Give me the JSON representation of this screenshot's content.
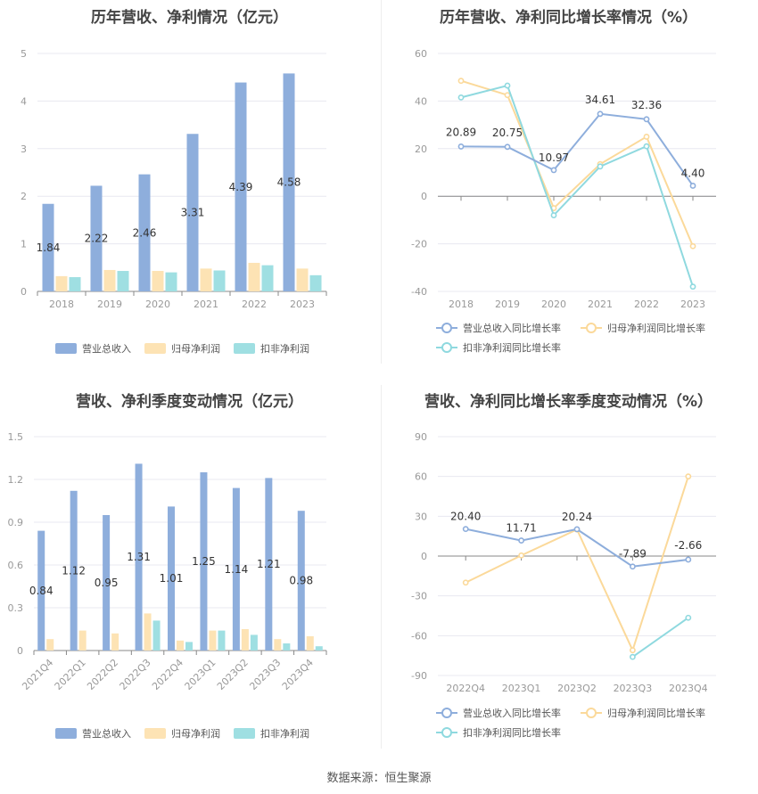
{
  "footer": {
    "source": "数据来源：恒生聚源"
  },
  "colors": {
    "revenue_bar": "#8eaedc",
    "profit_bar": "#fde3b4",
    "deducted_bar": "#9fdfe2",
    "revenue_line": "#8eaedc",
    "profit_line": "#fbd99a",
    "deducted_line": "#8fd9df",
    "axis_text": "#999999",
    "grid": "#e8e8f0"
  },
  "chart_data": [
    {
      "type": "bar",
      "title": "历年营收、净利情况（亿元）",
      "categories": [
        "2018",
        "2019",
        "2020",
        "2021",
        "2022",
        "2023"
      ],
      "ylim": [
        0,
        5
      ],
      "yticks": [
        "0",
        "1",
        "2",
        "3",
        "4",
        "5"
      ],
      "series": [
        {
          "name": "营业总收入",
          "values": [
            1.84,
            2.22,
            2.46,
            3.31,
            4.39,
            4.58
          ],
          "labels": [
            "1.84",
            "2.22",
            "2.46",
            "3.31",
            "4.39",
            "4.58"
          ]
        },
        {
          "name": "归母净利润",
          "values": [
            0.32,
            0.45,
            0.43,
            0.48,
            0.6,
            0.48
          ]
        },
        {
          "name": "扣非净利润",
          "values": [
            0.3,
            0.43,
            0.4,
            0.44,
            0.55,
            0.34
          ]
        }
      ],
      "legend": "bottom",
      "grid": true
    },
    {
      "type": "line",
      "title": "历年营收、净利同比增长率情况（%）",
      "categories": [
        "2018",
        "2019",
        "2020",
        "2021",
        "2022",
        "2023"
      ],
      "ylim": [
        -40,
        60
      ],
      "yticks": [
        "-40",
        "-20",
        "0",
        "20",
        "40",
        "60"
      ],
      "series": [
        {
          "name": "营业总收入同比增长率",
          "values": [
            20.89,
            20.75,
            10.97,
            34.61,
            32.36,
            4.4
          ],
          "labels": [
            "20.89",
            "20.75",
            "10.97",
            "34.61",
            "32.36",
            "4.40"
          ]
        },
        {
          "name": "归母净利润同比增长率",
          "values": [
            48.5,
            42.5,
            -5,
            13.5,
            25,
            -21
          ]
        },
        {
          "name": "扣非净利润同比增长率",
          "values": [
            41.5,
            46.5,
            -8,
            12.5,
            21,
            -38
          ]
        }
      ],
      "legend": "bottom",
      "grid": true
    },
    {
      "type": "bar",
      "title": "营收、净利季度变动情况（亿元）",
      "categories": [
        "2021Q4",
        "2022Q1",
        "2022Q2",
        "2022Q3",
        "2022Q4",
        "2023Q1",
        "2023Q2",
        "2023Q3",
        "2023Q4"
      ],
      "ylim": [
        0,
        1.5
      ],
      "yticks": [
        "0",
        "0.3",
        "0.6",
        "0.9",
        "1.2",
        "1.5"
      ],
      "series": [
        {
          "name": "营业总收入",
          "values": [
            0.84,
            1.12,
            0.95,
            1.31,
            1.01,
            1.25,
            1.14,
            1.21,
            0.98
          ],
          "labels": [
            "0.84",
            "1.12",
            "0.95",
            "1.31",
            "1.01",
            "1.25",
            "1.14",
            "1.21",
            "0.98"
          ]
        },
        {
          "name": "归母净利润",
          "values": [
            0.08,
            0.14,
            0.12,
            0.26,
            0.07,
            0.14,
            0.15,
            0.08,
            0.1
          ]
        },
        {
          "name": "扣非净利润",
          "values": [
            0.0,
            0.0,
            0.0,
            0.21,
            0.06,
            0.14,
            0.11,
            0.05,
            0.03
          ]
        }
      ],
      "legend": "bottom",
      "grid": true
    },
    {
      "type": "line",
      "title": "营收、净利同比增长率季度变动情况（%）",
      "categories": [
        "2022Q4",
        "2023Q1",
        "2023Q2",
        "2023Q3",
        "2023Q4"
      ],
      "ylim": [
        -90,
        90
      ],
      "yticks": [
        "-90",
        "-60",
        "-30",
        "0",
        "30",
        "60",
        "90"
      ],
      "series": [
        {
          "name": "营业总收入同比增长率",
          "values": [
            20.4,
            11.71,
            20.24,
            -7.89,
            -2.66
          ],
          "labels": [
            "20.40",
            "11.71",
            "20.24",
            "-7.89",
            "-2.66"
          ]
        },
        {
          "name": "归母净利润同比增长率",
          "values": [
            -20,
            0.5,
            20,
            -71,
            60
          ]
        },
        {
          "name": "扣非净利润同比增长率",
          "values": [
            null,
            null,
            null,
            -76,
            -46.5
          ]
        }
      ],
      "legend": "bottom",
      "grid": true
    }
  ]
}
